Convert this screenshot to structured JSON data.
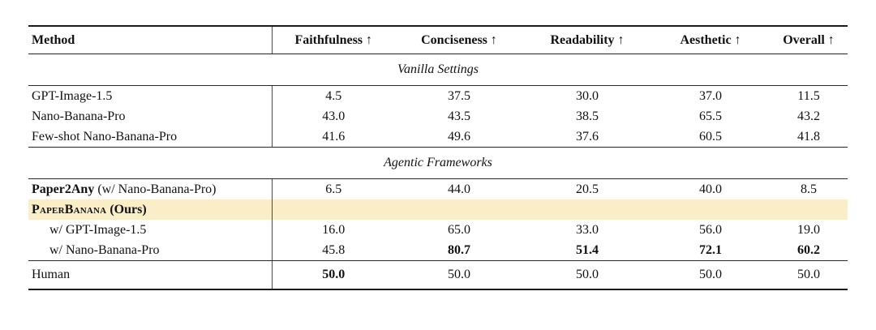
{
  "table": {
    "highlight_color": "#faeec8",
    "columns": [
      {
        "label": "Method"
      },
      {
        "label": "Faithfulness ↑"
      },
      {
        "label": "Conciseness ↑"
      },
      {
        "label": "Readability ↑"
      },
      {
        "label": "Aesthetic ↑"
      },
      {
        "label": "Overall ↑"
      }
    ],
    "sections": [
      {
        "header": "Vanilla Settings"
      },
      {
        "header": "Agentic Frameworks"
      }
    ],
    "rows": {
      "gpt_image": {
        "method": "GPT-Image-1.5",
        "values": [
          "4.5",
          "37.5",
          "30.0",
          "37.0",
          "11.5"
        ]
      },
      "nano_banana": {
        "method": "Nano-Banana-Pro",
        "values": [
          "43.0",
          "43.5",
          "38.5",
          "65.5",
          "43.2"
        ]
      },
      "few_shot": {
        "method": "Few-shot Nano-Banana-Pro",
        "values": [
          "41.6",
          "49.6",
          "37.6",
          "60.5",
          "41.8"
        ]
      },
      "paper2any": {
        "method_bold": "Paper2Any",
        "method_rest": " (w/ Nano-Banana-Pro)",
        "values": [
          "6.5",
          "44.0",
          "20.5",
          "40.0",
          "8.5"
        ]
      },
      "paperbanana": {
        "method_smallcaps": "PaperBanana",
        "method_rest": " (Ours)"
      },
      "ours_gpt": {
        "method": "w/ GPT-Image-1.5",
        "values": [
          "16.0",
          "65.0",
          "33.0",
          "56.0",
          "19.0"
        ]
      },
      "ours_nano": {
        "method": "w/ Nano-Banana-Pro",
        "values": [
          "45.8",
          "80.7",
          "51.4",
          "72.1",
          "60.2"
        ]
      },
      "human": {
        "method": "Human",
        "values": [
          "50.0",
          "50.0",
          "50.0",
          "50.0",
          "50.0"
        ]
      }
    }
  }
}
